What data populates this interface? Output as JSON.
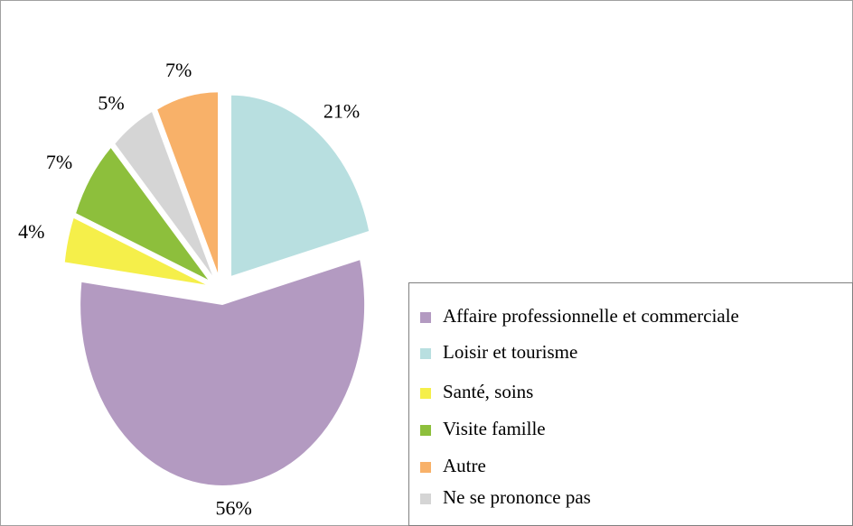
{
  "chart_data": {
    "type": "pie",
    "categories": [
      "Loisir et tourisme",
      "Affaire  professionnelle et commerciale",
      "Santé, soins",
      "Visite famille",
      "Ne se prononce pas",
      "Autre"
    ],
    "values": [
      21,
      56,
      4,
      7,
      5,
      7
    ],
    "value_labels": [
      "21%",
      "56%",
      "4%",
      "7%",
      "5%",
      "7%"
    ],
    "colors": [
      "#b8dfe0",
      "#b39ac1",
      "#f5ef4a",
      "#8dbf3c",
      "#d5d5d5",
      "#f8b169"
    ],
    "legend": "lower right"
  }
}
